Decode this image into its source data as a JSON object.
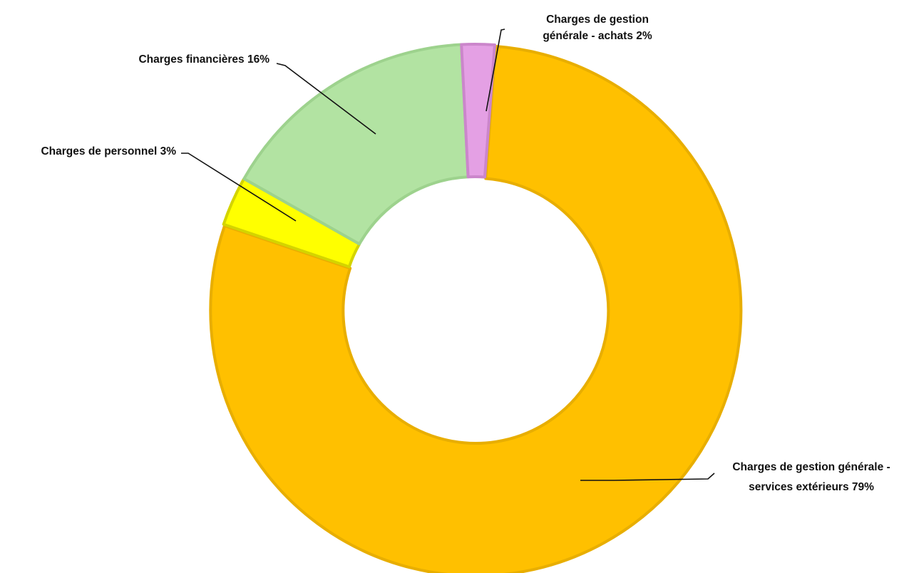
{
  "chart_data": {
    "type": "pie",
    "variant": "donut",
    "title": "",
    "slices": [
      {
        "name": "Charges de gestion générale - services extérieurs",
        "value": 79,
        "label_lines": [
          "Charges de gestion générale -",
          "services extérieurs 79%"
        ],
        "color": "#FFC000",
        "border": "#E8AE00"
      },
      {
        "name": "Charges de personnel",
        "value": 3,
        "label_lines": [
          "Charges de personnel 3%"
        ],
        "color": "#FFFF00",
        "border": "#D4D400"
      },
      {
        "name": "Charges financières",
        "value": 16,
        "label_lines": [
          "Charges financières 16%"
        ],
        "color": "#B2E3A2",
        "border": "#9DD28D"
      },
      {
        "name": "Charges de gestion générale - achats",
        "value": 2,
        "label_lines": [
          "Charges de gestion",
          "générale - achats 2%"
        ],
        "color": "#E4A0E4",
        "border": "#CB86CB"
      }
    ],
    "legend": "none",
    "data_labels": "outside with leader lines"
  }
}
